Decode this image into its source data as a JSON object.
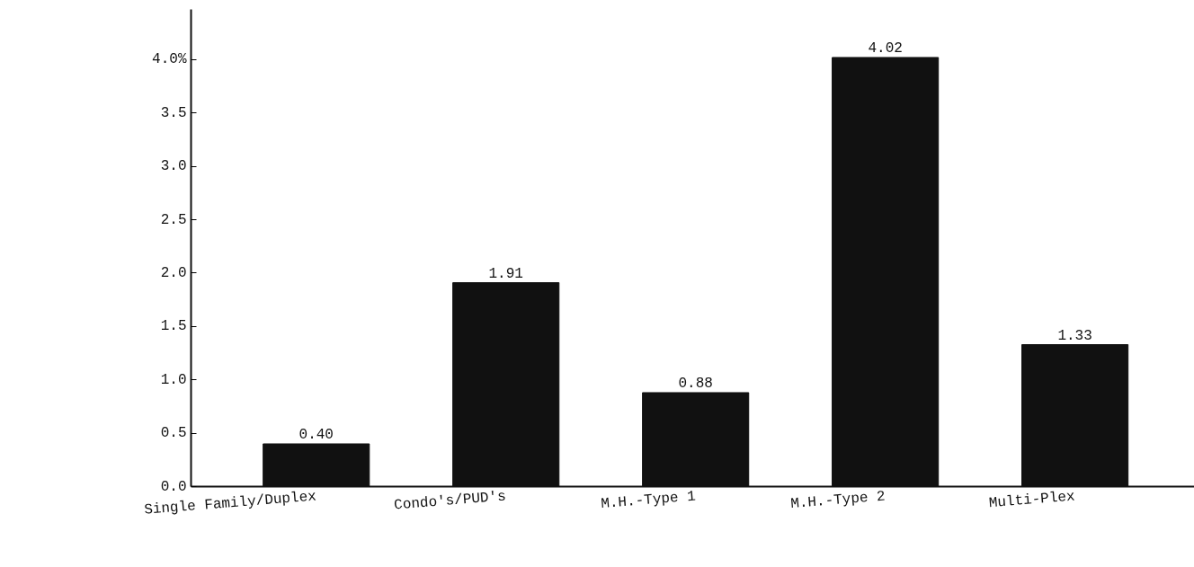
{
  "chart_data": {
    "type": "bar",
    "categories": [
      "Single Family/Duplex",
      "Condo's/PUD's",
      "M.H.-Type 1",
      "M.H.-Type 2",
      "Multi-Plex"
    ],
    "values": [
      0.4,
      1.91,
      0.88,
      4.02,
      1.33
    ],
    "value_labels": [
      "0.40",
      "1.91",
      "0.88",
      "4.02",
      "1.33"
    ],
    "color": "#111111",
    "ylim": [
      0,
      4.47
    ],
    "yticks": [
      {
        "value": 0,
        "label": "0.0"
      },
      {
        "value": 0.5,
        "label": "0.5"
      },
      {
        "value": 1,
        "label": "1.0"
      },
      {
        "value": 1.5,
        "label": "1.5"
      },
      {
        "value": 2,
        "label": "2.0"
      },
      {
        "value": 2.5,
        "label": "2.5"
      },
      {
        "value": 3,
        "label": "3.0"
      },
      {
        "value": 3.5,
        "label": "3.5"
      },
      {
        "value": 4,
        "label": "4.0%"
      }
    ]
  }
}
